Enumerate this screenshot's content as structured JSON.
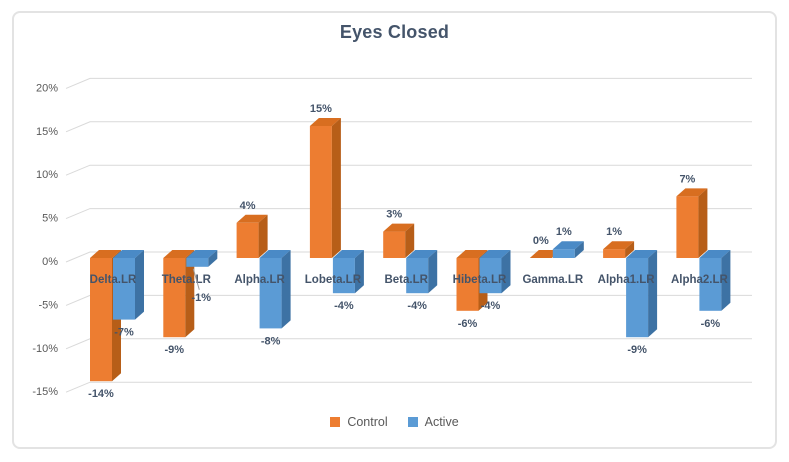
{
  "chart_data": {
    "type": "bar",
    "subtype": "3d-clustered-column",
    "title": "Eyes Closed",
    "categories": [
      "Delta.LR",
      "Theta.LR",
      "Alpha.LR",
      "Lobeta.LR",
      "Beta.LR",
      "Hibeta.LR",
      "Gamma.LR",
      "Alpha1.LR",
      "Alpha2.LR"
    ],
    "series": [
      {
        "name": "Control",
        "color": "#ED7D31",
        "color_top": "#D86E20",
        "color_side": "#B75E18",
        "values": [
          -14,
          -9,
          4,
          15,
          3,
          -6,
          0,
          1,
          7
        ],
        "labels": [
          "-14%",
          "-9%",
          "4%",
          "15%",
          "3%",
          "-6%",
          "0%",
          "1%",
          "7%"
        ]
      },
      {
        "name": "Active",
        "color": "#5B9BD5",
        "color_top": "#4A8AC6",
        "color_side": "#3D72A4",
        "values": [
          -7,
          -1,
          -8,
          -4,
          -4,
          -4,
          1,
          -9,
          -6
        ],
        "labels": [
          "-7%",
          "-1%",
          "-8%",
          "-4%",
          "-4%",
          "-4%",
          "1%",
          "-9%",
          "-6%"
        ]
      }
    ],
    "value_suffix": "%",
    "ylim": [
      -15,
      20
    ],
    "ytick_values": [
      20,
      15,
      10,
      5,
      0,
      -5,
      -10,
      -15
    ],
    "yticks": [
      "20%",
      "15%",
      "10%",
      "5%",
      "0%",
      "-5%",
      "-10%",
      "-15%"
    ],
    "grid": true,
    "data_labels": true,
    "legend_position": "bottom",
    "label_adjustments": [
      {
        "series": 1,
        "index": 1,
        "dx": 4,
        "dy": 18,
        "leader": true
      }
    ],
    "colors": {
      "title_text": "#44546A",
      "category_text": "#44546A",
      "data_label_text": "#44546A",
      "axis_tick_text": "#595959",
      "gridline": "#D9D9D9",
      "legend_text": "#595959",
      "frame_border": "#E3E3E3",
      "background": "#FFFFFF",
      "leader_line": "#9B9B9B"
    }
  }
}
